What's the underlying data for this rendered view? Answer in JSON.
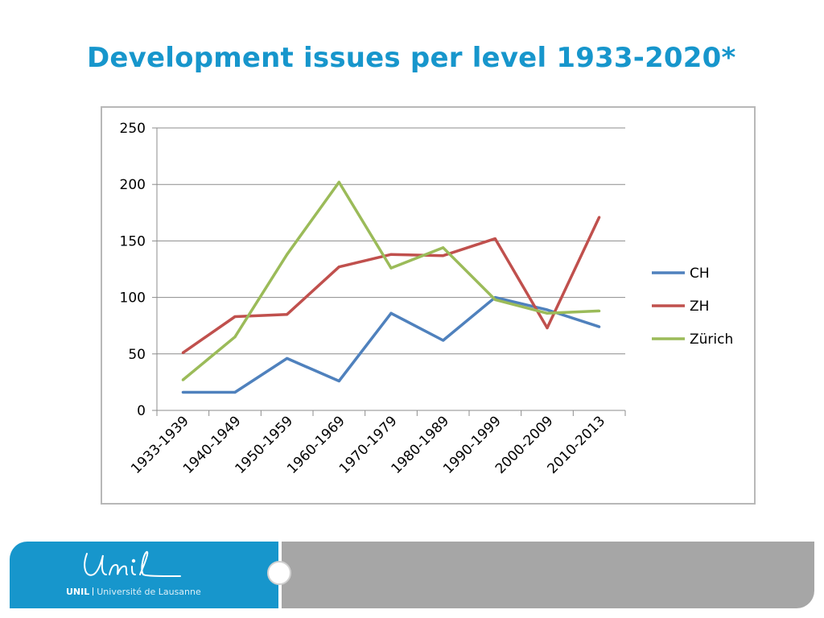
{
  "title": "Development issues per level 1933-2020*",
  "chart_data": {
    "type": "line",
    "title": "",
    "xlabel": "",
    "ylabel": "",
    "categories": [
      "1933-1939",
      "1940-1949",
      "1950-1959",
      "1960-1969",
      "1970-1979",
      "1980-1989",
      "1990-1999",
      "2000-2009",
      "2010-2013"
    ],
    "ylim": [
      0,
      250
    ],
    "yticks": [
      "0",
      "50",
      "100",
      "150",
      "200",
      "250"
    ],
    "grid": true,
    "legend": "right",
    "series": [
      {
        "name": "CH",
        "color": "#4f81bd",
        "values": [
          16,
          16,
          46,
          26,
          86,
          62,
          100,
          89,
          74
        ]
      },
      {
        "name": "ZH",
        "color": "#c0504d",
        "values": [
          51,
          83,
          85,
          127,
          138,
          137,
          152,
          73,
          171
        ]
      },
      {
        "name": "Zürich",
        "color": "#9bbb59",
        "values": [
          27,
          65,
          138,
          202,
          126,
          144,
          98,
          86,
          88
        ]
      }
    ]
  },
  "footer": {
    "logo_script": "Unil",
    "logo_abbr": "UNIL",
    "logo_name": "Université de Lausanne"
  }
}
